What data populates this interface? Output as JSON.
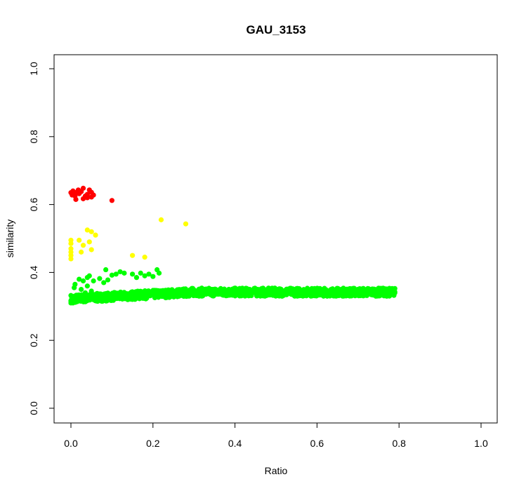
{
  "chart_data": {
    "type": "scatter",
    "title": "GAU_3153",
    "xlabel": "Ratio",
    "ylabel": "similarity",
    "xlim": [
      0.0,
      1.0
    ],
    "ylim": [
      0.0,
      1.0
    ],
    "x_ticks": [
      "0.0",
      "0.2",
      "0.4",
      "0.6",
      "0.8",
      "1.0"
    ],
    "y_ticks": [
      "0.0",
      "0.2",
      "0.4",
      "0.6",
      "0.8",
      "1.0"
    ],
    "grid": false,
    "legend": "none",
    "series": [
      {
        "color": "#ff0000",
        "points": [
          [
            0.0,
            0.635
          ],
          [
            0.003,
            0.628
          ],
          [
            0.005,
            0.64
          ],
          [
            0.008,
            0.632
          ],
          [
            0.01,
            0.625
          ],
          [
            0.012,
            0.615
          ],
          [
            0.015,
            0.637
          ],
          [
            0.018,
            0.643
          ],
          [
            0.02,
            0.632
          ],
          [
            0.025,
            0.638
          ],
          [
            0.03,
            0.648
          ],
          [
            0.03,
            0.617
          ],
          [
            0.035,
            0.625
          ],
          [
            0.04,
            0.63
          ],
          [
            0.04,
            0.62
          ],
          [
            0.045,
            0.643
          ],
          [
            0.05,
            0.636
          ],
          [
            0.05,
            0.622
          ],
          [
            0.055,
            0.628
          ],
          [
            0.1,
            0.612
          ]
        ]
      },
      {
        "color": "#ffff00",
        "points": [
          [
            0.0,
            0.495
          ],
          [
            0.0,
            0.485
          ],
          [
            0.0,
            0.47
          ],
          [
            0.0,
            0.46
          ],
          [
            0.0,
            0.45
          ],
          [
            0.0,
            0.44
          ],
          [
            0.02,
            0.495
          ],
          [
            0.025,
            0.46
          ],
          [
            0.03,
            0.48
          ],
          [
            0.04,
            0.525
          ],
          [
            0.045,
            0.49
          ],
          [
            0.05,
            0.52
          ],
          [
            0.05,
            0.467
          ],
          [
            0.06,
            0.51
          ],
          [
            0.15,
            0.45
          ],
          [
            0.18,
            0.445
          ],
          [
            0.22,
            0.555
          ],
          [
            0.28,
            0.543
          ]
        ]
      },
      {
        "color": "#00ff00",
        "points": [
          [
            0.0,
            0.315
          ],
          [
            0.005,
            0.31
          ],
          [
            0.008,
            0.355
          ],
          [
            0.01,
            0.365
          ],
          [
            0.015,
            0.325
          ],
          [
            0.02,
            0.38
          ],
          [
            0.02,
            0.318
          ],
          [
            0.025,
            0.35
          ],
          [
            0.03,
            0.375
          ],
          [
            0.03,
            0.328
          ],
          [
            0.035,
            0.34
          ],
          [
            0.04,
            0.385
          ],
          [
            0.04,
            0.36
          ],
          [
            0.04,
            0.318
          ],
          [
            0.045,
            0.39
          ],
          [
            0.05,
            0.345
          ],
          [
            0.05,
            0.322
          ],
          [
            0.055,
            0.375
          ],
          [
            0.06,
            0.33
          ],
          [
            0.065,
            0.315
          ],
          [
            0.07,
            0.382
          ],
          [
            0.075,
            0.322
          ],
          [
            0.08,
            0.37
          ],
          [
            0.085,
            0.408
          ],
          [
            0.09,
            0.378
          ],
          [
            0.095,
            0.335
          ],
          [
            0.1,
            0.392
          ],
          [
            0.11,
            0.395
          ],
          [
            0.12,
            0.402
          ],
          [
            0.13,
            0.398
          ],
          [
            0.15,
            0.395
          ],
          [
            0.16,
            0.385
          ],
          [
            0.17,
            0.398
          ],
          [
            0.18,
            0.39
          ],
          [
            0.19,
            0.395
          ],
          [
            0.2,
            0.388
          ],
          [
            0.21,
            0.408
          ],
          [
            0.215,
            0.398
          ]
        ]
      }
    ],
    "band": {
      "color": "#00ff00",
      "x_range": [
        0.0,
        0.79
      ],
      "y_center_start": 0.322,
      "y_center_rise": 0.02,
      "y_spread": 0.012
    }
  }
}
